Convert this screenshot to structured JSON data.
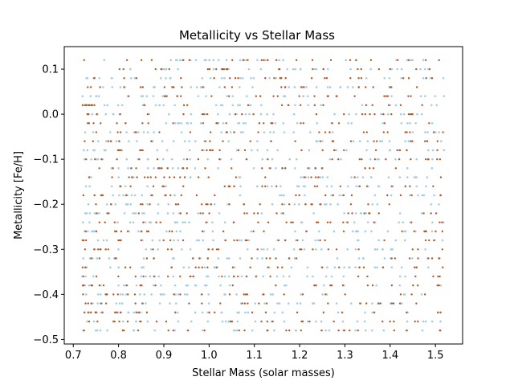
{
  "chart_data": {
    "type": "scatter",
    "title": "Metallicity vs Stellar Mass",
    "xlabel": "Stellar Mass (solar masses)",
    "ylabel": "Metallicity [Fe/H]",
    "xlim": [
      0.68,
      1.56
    ],
    "ylim": [
      -0.51,
      0.15
    ],
    "xticks": [
      0.7,
      0.8,
      0.9,
      1.0,
      1.1,
      1.2,
      1.3,
      1.4,
      1.5
    ],
    "xtick_labels": [
      "0.7",
      "0.8",
      "0.9",
      "1.0",
      "1.1",
      "1.2",
      "1.3",
      "1.4",
      "1.5"
    ],
    "yticks": [
      -0.5,
      -0.4,
      -0.3,
      -0.2,
      -0.1,
      0.0,
      0.1
    ],
    "ytick_labels": [
      "−0.5",
      "−0.4",
      "−0.3",
      "−0.2",
      "−0.1",
      "0.0",
      "0.1"
    ],
    "grid": false,
    "legend": "none",
    "metallicity_levels": [
      -0.48,
      -0.46,
      -0.44,
      -0.42,
      -0.4,
      -0.38,
      -0.36,
      -0.34,
      -0.32,
      -0.3,
      -0.28,
      -0.26,
      -0.24,
      -0.22,
      -0.2,
      -0.18,
      -0.16,
      -0.14,
      -0.12,
      -0.1,
      -0.08,
      -0.06,
      -0.04,
      -0.02,
      0.0,
      0.02,
      0.04,
      0.06,
      0.08,
      0.1,
      0.12
    ],
    "series": [
      {
        "color": "#a6cee3",
        "points_per_level": 30,
        "x_range": [
          0.72,
          1.52
        ],
        "y_levels": "metallicity_levels"
      },
      {
        "color": "#b15928",
        "points_per_level": 24,
        "x_range": [
          0.72,
          1.52
        ],
        "y_levels": "metallicity_levels"
      }
    ]
  }
}
